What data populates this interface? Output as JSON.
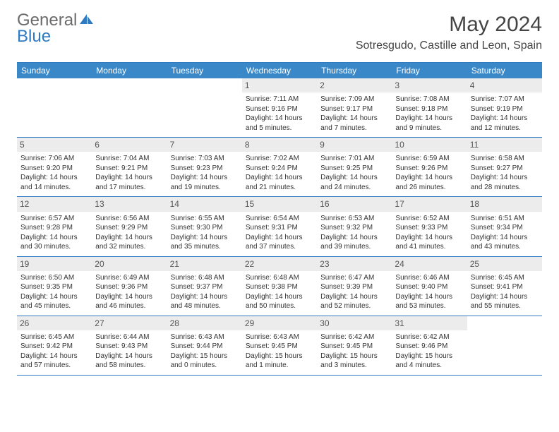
{
  "logo": {
    "word1": "General",
    "word2": "Blue"
  },
  "title": "May 2024",
  "location": "Sotresgudo, Castille and Leon, Spain",
  "colors": {
    "header_blue": "#3a88c8",
    "border_blue": "#2f7ac0",
    "daynum_bg": "#ececec",
    "logo_gray": "#6b6b6b",
    "text": "#333333"
  },
  "weekdays": [
    "Sunday",
    "Monday",
    "Tuesday",
    "Wednesday",
    "Thursday",
    "Friday",
    "Saturday"
  ],
  "weeks": [
    [
      null,
      null,
      null,
      {
        "n": "1",
        "sr": "7:11 AM",
        "ss": "9:16 PM",
        "dl": "14 hours and 5 minutes."
      },
      {
        "n": "2",
        "sr": "7:09 AM",
        "ss": "9:17 PM",
        "dl": "14 hours and 7 minutes."
      },
      {
        "n": "3",
        "sr": "7:08 AM",
        "ss": "9:18 PM",
        "dl": "14 hours and 9 minutes."
      },
      {
        "n": "4",
        "sr": "7:07 AM",
        "ss": "9:19 PM",
        "dl": "14 hours and 12 minutes."
      }
    ],
    [
      {
        "n": "5",
        "sr": "7:06 AM",
        "ss": "9:20 PM",
        "dl": "14 hours and 14 minutes."
      },
      {
        "n": "6",
        "sr": "7:04 AM",
        "ss": "9:21 PM",
        "dl": "14 hours and 17 minutes."
      },
      {
        "n": "7",
        "sr": "7:03 AM",
        "ss": "9:23 PM",
        "dl": "14 hours and 19 minutes."
      },
      {
        "n": "8",
        "sr": "7:02 AM",
        "ss": "9:24 PM",
        "dl": "14 hours and 21 minutes."
      },
      {
        "n": "9",
        "sr": "7:01 AM",
        "ss": "9:25 PM",
        "dl": "14 hours and 24 minutes."
      },
      {
        "n": "10",
        "sr": "6:59 AM",
        "ss": "9:26 PM",
        "dl": "14 hours and 26 minutes."
      },
      {
        "n": "11",
        "sr": "6:58 AM",
        "ss": "9:27 PM",
        "dl": "14 hours and 28 minutes."
      }
    ],
    [
      {
        "n": "12",
        "sr": "6:57 AM",
        "ss": "9:28 PM",
        "dl": "14 hours and 30 minutes."
      },
      {
        "n": "13",
        "sr": "6:56 AM",
        "ss": "9:29 PM",
        "dl": "14 hours and 32 minutes."
      },
      {
        "n": "14",
        "sr": "6:55 AM",
        "ss": "9:30 PM",
        "dl": "14 hours and 35 minutes."
      },
      {
        "n": "15",
        "sr": "6:54 AM",
        "ss": "9:31 PM",
        "dl": "14 hours and 37 minutes."
      },
      {
        "n": "16",
        "sr": "6:53 AM",
        "ss": "9:32 PM",
        "dl": "14 hours and 39 minutes."
      },
      {
        "n": "17",
        "sr": "6:52 AM",
        "ss": "9:33 PM",
        "dl": "14 hours and 41 minutes."
      },
      {
        "n": "18",
        "sr": "6:51 AM",
        "ss": "9:34 PM",
        "dl": "14 hours and 43 minutes."
      }
    ],
    [
      {
        "n": "19",
        "sr": "6:50 AM",
        "ss": "9:35 PM",
        "dl": "14 hours and 45 minutes."
      },
      {
        "n": "20",
        "sr": "6:49 AM",
        "ss": "9:36 PM",
        "dl": "14 hours and 46 minutes."
      },
      {
        "n": "21",
        "sr": "6:48 AM",
        "ss": "9:37 PM",
        "dl": "14 hours and 48 minutes."
      },
      {
        "n": "22",
        "sr": "6:48 AM",
        "ss": "9:38 PM",
        "dl": "14 hours and 50 minutes."
      },
      {
        "n": "23",
        "sr": "6:47 AM",
        "ss": "9:39 PM",
        "dl": "14 hours and 52 minutes."
      },
      {
        "n": "24",
        "sr": "6:46 AM",
        "ss": "9:40 PM",
        "dl": "14 hours and 53 minutes."
      },
      {
        "n": "25",
        "sr": "6:45 AM",
        "ss": "9:41 PM",
        "dl": "14 hours and 55 minutes."
      }
    ],
    [
      {
        "n": "26",
        "sr": "6:45 AM",
        "ss": "9:42 PM",
        "dl": "14 hours and 57 minutes."
      },
      {
        "n": "27",
        "sr": "6:44 AM",
        "ss": "9:43 PM",
        "dl": "14 hours and 58 minutes."
      },
      {
        "n": "28",
        "sr": "6:43 AM",
        "ss": "9:44 PM",
        "dl": "15 hours and 0 minutes."
      },
      {
        "n": "29",
        "sr": "6:43 AM",
        "ss": "9:45 PM",
        "dl": "15 hours and 1 minute."
      },
      {
        "n": "30",
        "sr": "6:42 AM",
        "ss": "9:45 PM",
        "dl": "15 hours and 3 minutes."
      },
      {
        "n": "31",
        "sr": "6:42 AM",
        "ss": "9:46 PM",
        "dl": "15 hours and 4 minutes."
      },
      null
    ]
  ],
  "labels": {
    "sunrise": "Sunrise: ",
    "sunset": "Sunset: ",
    "daylight": "Daylight: "
  }
}
